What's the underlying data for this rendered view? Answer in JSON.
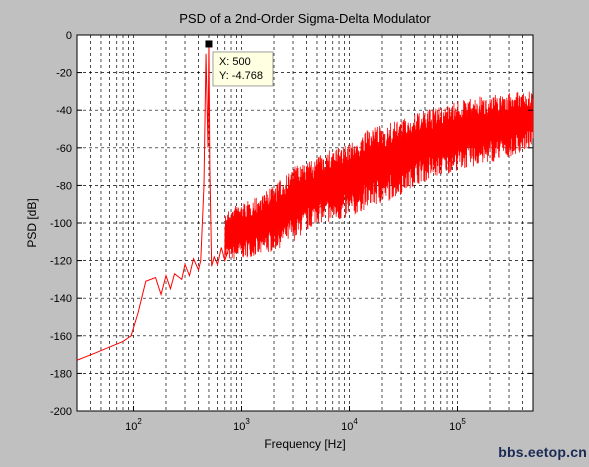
{
  "chart_data": {
    "type": "line",
    "title": "PSD of a 2nd-Order Sigma-Delta Modulator",
    "xlabel": "Frequency [Hz]",
    "ylabel": "PSD [dB]",
    "xscale": "log",
    "xlim": [
      30,
      500000
    ],
    "ylim": [
      -200,
      0
    ],
    "grid": true,
    "yticks": [
      0,
      -20,
      -40,
      -60,
      -80,
      -100,
      -120,
      -140,
      -160,
      -180,
      -200
    ],
    "ytick_labels": [
      "0",
      "-20",
      "-40",
      "-60",
      "-80",
      "-100",
      "-120",
      "-140",
      "-160",
      "-180",
      "-200"
    ],
    "xticks": [
      100,
      1000,
      10000,
      100000
    ],
    "xtick_bases": [
      "10",
      "10",
      "10",
      "10"
    ],
    "xtick_exponents": [
      "2",
      "3",
      "4",
      "5"
    ],
    "series": [
      {
        "color": "#ff0000",
        "x": [
          30,
          45,
          60,
          80,
          95,
          110,
          130,
          160,
          180,
          200,
          220,
          240,
          280,
          300,
          330,
          360,
          400,
          420,
          450,
          470,
          490,
          500,
          510,
          530,
          560,
          600,
          650,
          700,
          800,
          900,
          1000,
          1200,
          1500,
          2000,
          3000,
          4000,
          5000,
          7000,
          10000,
          15000,
          20000,
          30000,
          50000,
          70000,
          100000,
          150000,
          200000,
          300000,
          400000,
          500000
        ],
        "y": [
          -173,
          -169,
          -166,
          -163,
          -160,
          -148,
          -131,
          -129,
          -138,
          -128,
          -135,
          -127,
          -130,
          -122,
          -128,
          -119,
          -125,
          -120,
          -80,
          -10,
          -60,
          -4.768,
          -70,
          -123,
          -118,
          -122,
          -113,
          -120,
          -110,
          -115,
          -105,
          -108,
          -102,
          -100,
          -95,
          -90,
          -92,
          -88,
          -86,
          -80,
          -75,
          -70,
          -64,
          -58,
          -55,
          -52,
          -48,
          -45,
          -44,
          -42
        ],
        "band_y": [
          -120,
          -120,
          -118,
          -118,
          -115,
          -112,
          -110,
          -105,
          -100,
          -100,
          -98,
          -95,
          -92,
          -90,
          -85,
          -80,
          -78,
          -75,
          -72,
          -70,
          -68,
          -65,
          -62,
          -60
        ],
        "band_top": [
          -95,
          -90,
          -88,
          -85,
          -80,
          -75,
          -70,
          -68,
          -65,
          -60,
          -58,
          -55,
          -50,
          -48,
          -45,
          -42,
          -40,
          -38,
          -35,
          -33,
          -32,
          -31,
          -30,
          -30
        ],
        "band_x": [
          700,
          900,
          1200,
          1500,
          2000,
          2500,
          3000,
          4000,
          5000,
          7000,
          10000,
          12000,
          15000,
          20000,
          30000,
          40000,
          50000,
          70000,
          100000,
          150000,
          200000,
          300000,
          400000,
          500000
        ]
      }
    ],
    "marker": {
      "x": 500,
      "y": -4.768,
      "label_x": "X: 500",
      "label_y": "Y: -4.768"
    }
  },
  "watermark": "bbs.eetop.cn"
}
